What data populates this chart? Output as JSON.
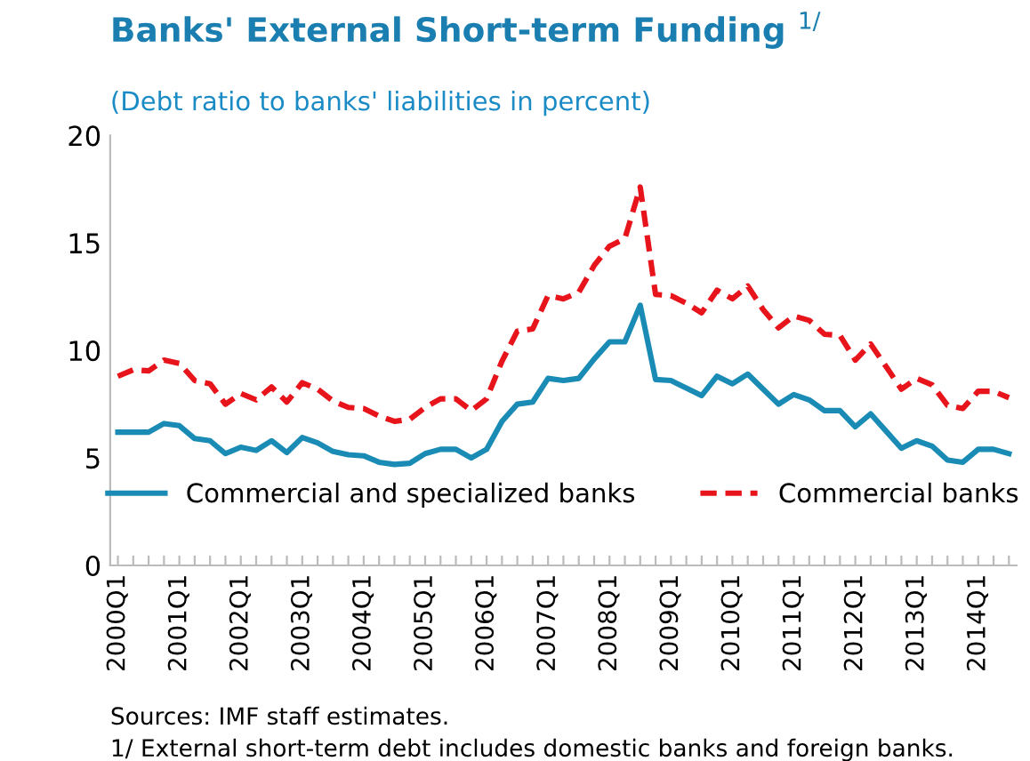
{
  "chart_data": {
    "type": "line",
    "title": "Banks' External Short-term Funding $^{1/}$",
    "subtitle": "(Debt ratio to banks' liabilities in percent)",
    "categories": [
      "2000Q1",
      null,
      null,
      null,
      "2001Q1",
      null,
      null,
      null,
      "2002Q1",
      null,
      null,
      null,
      "2003Q1",
      null,
      null,
      null,
      "2004Q1",
      null,
      null,
      null,
      "2005Q1",
      null,
      null,
      null,
      "2006Q1",
      null,
      null,
      null,
      "2007Q1",
      null,
      null,
      null,
      "2008Q1",
      null,
      null,
      null,
      "2009Q1",
      null,
      null,
      null,
      "2010Q1",
      null,
      null,
      null,
      "2011Q1",
      null,
      null,
      null,
      "2012Q1",
      null,
      null,
      null,
      "2013Q1",
      null,
      null,
      null,
      "2014Q1",
      null,
      null
    ],
    "series": [
      {
        "name": "Commercial and specialized banks",
        "color": "#1a8bb5",
        "line_style": "solid",
        "values": [
          6.2,
          6.2,
          6.2,
          6.6,
          6.5,
          5.9,
          5.8,
          5.2,
          5.5,
          5.35,
          5.8,
          5.25,
          5.95,
          5.7,
          5.3,
          5.15,
          5.1,
          4.8,
          4.7,
          4.75,
          5.2,
          5.4,
          5.4,
          5.0,
          5.4,
          6.7,
          7.5,
          7.6,
          8.7,
          8.6,
          8.7,
          9.6,
          10.4,
          10.4,
          12.1,
          8.65,
          8.6,
          8.25,
          7.9,
          8.8,
          8.45,
          8.9,
          8.2,
          7.5,
          7.95,
          7.7,
          7.2,
          7.2,
          6.45,
          7.05,
          6.25,
          5.45,
          5.8,
          5.55,
          4.9,
          4.8,
          5.4,
          5.4,
          5.2
        ]
      },
      {
        "name": "Commercial banks",
        "color": "#e8141b",
        "line_style": "dashed",
        "values": [
          8.8,
          9.1,
          9.05,
          9.55,
          9.4,
          8.6,
          8.45,
          7.5,
          8.0,
          7.7,
          8.3,
          7.6,
          8.5,
          8.2,
          7.65,
          7.35,
          7.3,
          6.95,
          6.7,
          6.8,
          7.35,
          7.75,
          7.75,
          7.2,
          7.75,
          9.5,
          10.9,
          11.0,
          12.55,
          12.4,
          12.7,
          13.95,
          14.85,
          15.2,
          17.6,
          12.6,
          12.55,
          12.2,
          11.75,
          12.8,
          12.4,
          13.0,
          11.9,
          11.05,
          11.6,
          11.4,
          10.75,
          10.7,
          9.55,
          10.3,
          9.25,
          8.2,
          8.7,
          8.4,
          7.45,
          7.3,
          8.1,
          8.1,
          7.8
        ]
      }
    ],
    "ylim": [
      0,
      20
    ],
    "yticks": [
      0,
      5,
      10,
      15,
      20
    ],
    "grid": false,
    "legend": "bottom",
    "marker": "none",
    "annotations": [
      "Sources: IMF staff estimates.",
      "1/ External short-term debt includes domestic banks and foreign banks."
    ]
  }
}
